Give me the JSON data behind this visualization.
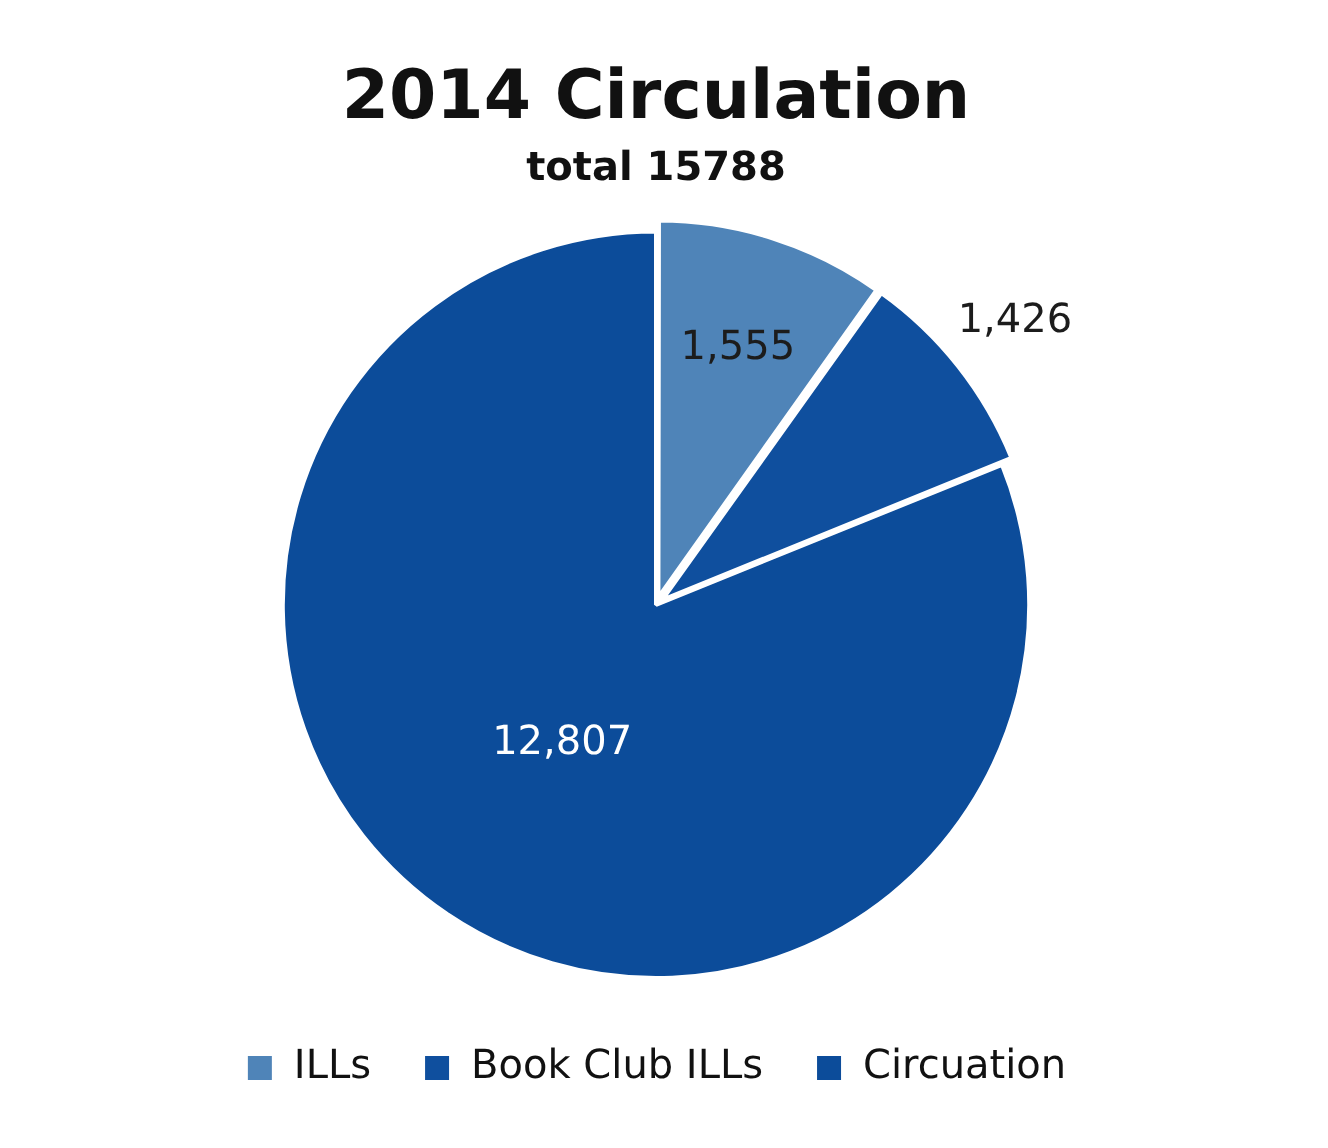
{
  "chart_data": {
    "type": "pie",
    "title": "2014 Circulation",
    "subtitle": "total 15788",
    "categories": [
      "ILLs",
      "Book Club ILLs",
      "Circuation"
    ],
    "values": [
      1555,
      1426,
      12807
    ],
    "colors": [
      "#4f84b8",
      "#0f4f9e",
      "#0c4c9a"
    ],
    "value_labels": [
      "1,555",
      "1,426",
      "12,807"
    ],
    "legend": "bottom"
  }
}
